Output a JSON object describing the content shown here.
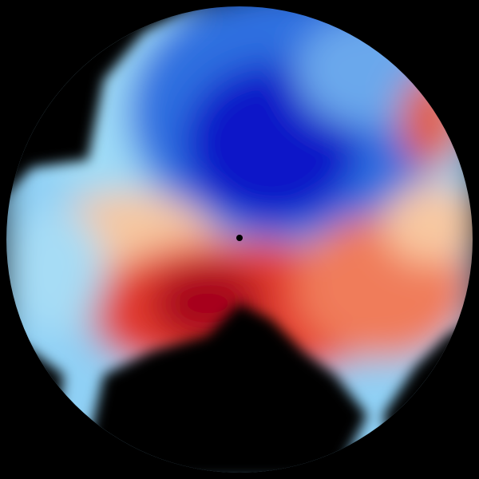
{
  "image": {
    "kind": "doppler-radar-velocity-sweep",
    "colors": {
      "background": "#000000",
      "inbound_strong": "#0a14c8",
      "inbound_mid": "#2f6fe0",
      "inbound_light": "#8fd0f5",
      "neutral": "#fbe6c0",
      "outbound_light": "#f6a47a",
      "outbound_mid": "#e33a2e",
      "outbound_strong": "#a5001e"
    }
  }
}
